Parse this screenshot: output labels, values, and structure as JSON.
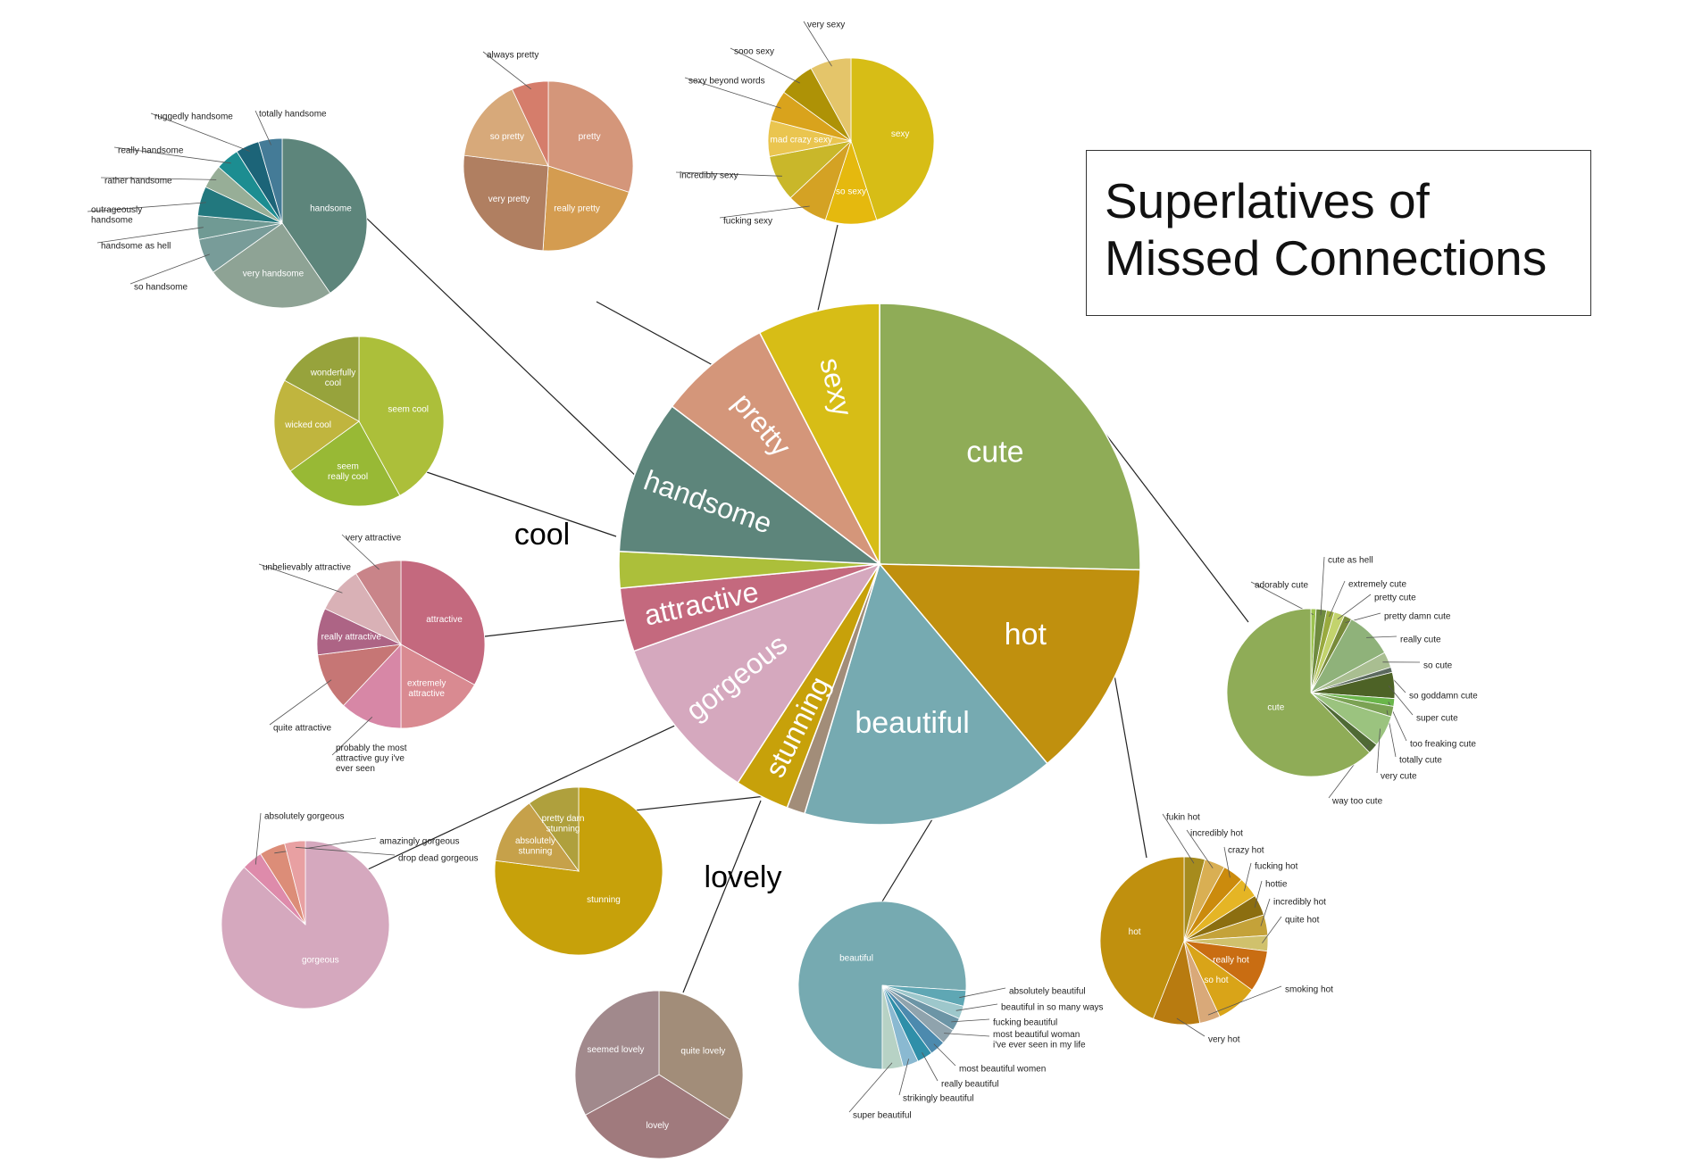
{
  "title": "Superlatives of\nMissed Connections",
  "chart_data": {
    "type": "pie",
    "main": {
      "name": "main",
      "slices": [
        {
          "label": "cute",
          "value": 90,
          "color": "#8FAC57",
          "fontSize": 34
        },
        {
          "label": "hot",
          "value": 48,
          "color": "#C0900E",
          "fontSize": 34
        },
        {
          "label": "beautiful",
          "value": 56,
          "color": "#76AAB1",
          "fontSize": 34
        },
        {
          "label": "lovely",
          "value": 4,
          "color": "#A28D79",
          "fontSize": 0
        },
        {
          "label": "stunning",
          "value": 12,
          "color": "#C7A10A",
          "fontSize": 32
        },
        {
          "label": "gorgeous",
          "value": 37,
          "color": "#D5A8BE",
          "fontSize": 32
        },
        {
          "label": "attractive",
          "value": 14,
          "color": "#C4697E",
          "fontSize": 32
        },
        {
          "label": "cool",
          "value": 8,
          "color": "#ACBF3A",
          "fontSize": 0
        },
        {
          "label": "handsome",
          "value": 34,
          "color": "#5D857B",
          "fontSize": 32
        },
        {
          "label": "pretty",
          "value": 25,
          "color": "#D4967A",
          "fontSize": 32
        },
        {
          "label": "sexy",
          "value": 27,
          "color": "#D7BD16",
          "fontSize": 32
        }
      ],
      "outer_labels": [
        {
          "text": "cool"
        },
        {
          "text": "lovely"
        }
      ]
    },
    "subs": [
      {
        "name": "handsome",
        "slices": [
          {
            "label": "handsome",
            "value": 36,
            "color": "#5D857B",
            "inside": true
          },
          {
            "label": "very handsome",
            "value": 22,
            "color": "#8EA395",
            "inside": true
          },
          {
            "label": "so handsome",
            "value": 6,
            "color": "#789C99",
            "inside": false
          },
          {
            "label": "handsome as hell",
            "value": 4,
            "color": "#709A94",
            "inside": false
          },
          {
            "label": "outrageously\nhandsome",
            "value": 5,
            "color": "#22787E",
            "inside": false
          },
          {
            "label": "rather handsome",
            "value": 4,
            "color": "#97AE97",
            "inside": false
          },
          {
            "label": "really handsome",
            "value": 4,
            "color": "#1C8D91",
            "inside": false
          },
          {
            "label": "ruggedly handsome",
            "value": 4,
            "color": "#1C6478",
            "inside": false
          },
          {
            "label": "totally handsome",
            "value": 4,
            "color": "#447B97",
            "inside": false
          }
        ]
      },
      {
        "name": "pretty",
        "slices": [
          {
            "label": "pretty",
            "value": 30,
            "color": "#D4967A",
            "inside": true
          },
          {
            "label": "really pretty",
            "value": 21,
            "color": "#D49C50",
            "inside": true
          },
          {
            "label": "very pretty",
            "value": 26,
            "color": "#B07F61",
            "inside": true
          },
          {
            "label": "so pretty",
            "value": 16,
            "color": "#D7A97A",
            "inside": true
          },
          {
            "label": "always pretty",
            "value": 7,
            "color": "#D57D6B",
            "inside": false
          }
        ]
      },
      {
        "name": "sexy",
        "slices": [
          {
            "label": "sexy",
            "value": 45,
            "color": "#D7BD16",
            "inside": true
          },
          {
            "label": "so sexy",
            "value": 10,
            "color": "#E5B90E",
            "inside": true
          },
          {
            "label": "fucking sexy",
            "value": 8,
            "color": "#D4A224",
            "inside": false
          },
          {
            "label": "incredibly sexy",
            "value": 9,
            "color": "#C9B72A",
            "inside": false
          },
          {
            "label": "mad crazy sexy",
            "value": 7,
            "color": "#EAC54F",
            "inside": true
          },
          {
            "label": "sexy beyond words",
            "value": 6,
            "color": "#D9A31C",
            "inside": false
          },
          {
            "label": "sooo sexy",
            "value": 7,
            "color": "#AE9206",
            "inside": false
          },
          {
            "label": "very sexy",
            "value": 8,
            "color": "#E4C56A",
            "inside": false
          }
        ]
      },
      {
        "name": "cool",
        "slices": [
          {
            "label": "seem cool",
            "value": 42,
            "color": "#ACBF3A",
            "inside": true
          },
          {
            "label": "seem\nreally cool",
            "value": 23,
            "color": "#98B935",
            "inside": true
          },
          {
            "label": "wicked cool",
            "value": 18,
            "color": "#C0B53E",
            "inside": true
          },
          {
            "label": "wonderfully\ncool",
            "value": 17,
            "color": "#97A33C",
            "inside": true
          }
        ]
      },
      {
        "name": "attractive",
        "slices": [
          {
            "label": "attractive",
            "value": 33,
            "color": "#C4697E",
            "inside": true
          },
          {
            "label": "extremely\nattractive",
            "value": 17,
            "color": "#D98A91",
            "inside": true
          },
          {
            "label": "probably the most\nattractive guy i've\never seen",
            "value": 12,
            "color": "#D787A6",
            "inside": false
          },
          {
            "label": "quite attractive",
            "value": 11,
            "color": "#C67675",
            "inside": false
          },
          {
            "label": "really attractive",
            "value": 9,
            "color": "#AD6485",
            "inside": true
          },
          {
            "label": "unbelievably attractive",
            "value": 9,
            "color": "#D9B1B6",
            "inside": false
          },
          {
            "label": "very attractive",
            "value": 9,
            "color": "#C98489",
            "inside": false
          }
        ]
      },
      {
        "name": "gorgeous",
        "slices": [
          {
            "label": "gorgeous",
            "value": 87,
            "color": "#D5A8BE",
            "inside": true
          },
          {
            "label": "absolutely gorgeous",
            "value": 4,
            "color": "#DE8BAB",
            "inside": false
          },
          {
            "label": "amazingly gorgeous",
            "value": 5,
            "color": "#DC8D78",
            "inside": false
          },
          {
            "label": "drop dead gorgeous",
            "value": 4,
            "color": "#E8A0A2",
            "inside": false
          }
        ]
      },
      {
        "name": "stunning",
        "slices": [
          {
            "label": "stunning",
            "value": 77,
            "color": "#C7A10A",
            "inside": true
          },
          {
            "label": "absolutely\nstunning",
            "value": 13,
            "color": "#C6A14A",
            "inside": true
          },
          {
            "label": "pretty darn\nstunning",
            "value": 10,
            "color": "#AFA03D",
            "inside": true
          }
        ]
      },
      {
        "name": "lovely",
        "slices": [
          {
            "label": "quite lovely",
            "value": 34,
            "color": "#A28D79",
            "inside": true
          },
          {
            "label": "lovely",
            "value": 33,
            "color": "#A07A7D",
            "inside": true
          },
          {
            "label": "seemed lovely",
            "value": 33,
            "color": "#A1898C",
            "inside": true
          }
        ]
      },
      {
        "name": "beautiful",
        "slices": [
          {
            "label": "beautiful",
            "value": 76,
            "color": "#76AAB1",
            "inside": true
          },
          {
            "label": "absolutely beautiful",
            "value": 3,
            "color": "#5FA7B4",
            "inside": false
          },
          {
            "label": "beautiful in so many ways",
            "value": 2.5,
            "color": "#9DC7CB",
            "inside": false
          },
          {
            "label": "fucking beautiful",
            "value": 2.5,
            "color": "#6C95A6",
            "inside": false
          },
          {
            "label": "most beautiful woman\ni've ever seen in my life",
            "value": 3,
            "color": "#8FA3AD",
            "inside": false
          },
          {
            "label": "most beautiful women",
            "value": 3,
            "color": "#4C8AAE",
            "inside": false
          },
          {
            "label": "really beautiful",
            "value": 3,
            "color": "#2F8FA9",
            "inside": false
          },
          {
            "label": "strikingly beautiful",
            "value": 3,
            "color": "#8AB9D1",
            "inside": false
          },
          {
            "label": "super beautiful",
            "value": 4,
            "color": "#B7D2C5",
            "inside": false
          }
        ]
      },
      {
        "name": "hot",
        "slices": [
          {
            "label": "fukin hot",
            "value": 4,
            "color": "#A68B1D",
            "inside": false
          },
          {
            "label": "incredibly hot",
            "value": 4,
            "color": "#D9AF53",
            "inside": false
          },
          {
            "label": "crazy hot",
            "value": 4,
            "color": "#CB8B0D",
            "inside": false
          },
          {
            "label": "fucking hot",
            "value": 4,
            "color": "#E5B525",
            "inside": false
          },
          {
            "label": "hottie",
            "value": 4,
            "color": "#8C6E10",
            "inside": false
          },
          {
            "label": "incredibly hot",
            "value": 4,
            "color": "#C4A239",
            "inside": false
          },
          {
            "label": "quite hot",
            "value": 3,
            "color": "#D0C16C",
            "inside": false
          },
          {
            "label": "really hot",
            "value": 8,
            "color": "#C96D12",
            "inside": true
          },
          {
            "label": "so hot",
            "value": 8,
            "color": "#D9A418",
            "inside": true
          },
          {
            "label": "smoking hot",
            "value": 4,
            "color": "#D9A979",
            "inside": false
          },
          {
            "label": "very hot",
            "value": 9,
            "color": "#B87B10",
            "inside": false
          },
          {
            "label": "hot",
            "value": 44,
            "color": "#C0900E",
            "inside": true
          }
        ]
      },
      {
        "name": "cute",
        "slices": [
          {
            "label": "adorably cute",
            "value": 1,
            "color": "#9CC350",
            "inside": false
          },
          {
            "label": "cute as hell",
            "value": 2,
            "color": "#6F8B3F",
            "inside": false
          },
          {
            "label": "extremely cute",
            "value": 1.5,
            "color": "#99AA3E",
            "inside": false
          },
          {
            "label": "pretty cute",
            "value": 2,
            "color": "#C3D36D",
            "inside": false
          },
          {
            "label": "pretty damn cute",
            "value": 1.5,
            "color": "#788A3A",
            "inside": false
          },
          {
            "label": "really cute",
            "value": 9,
            "color": "#8FB27A",
            "inside": false
          },
          {
            "label": "so cute",
            "value": 3,
            "color": "#A9BE91",
            "inside": false
          },
          {
            "label": "so goddamn cute",
            "value": 1,
            "color": "#5C6A5F",
            "inside": false
          },
          {
            "label": "super cute",
            "value": 5,
            "color": "#4D6226",
            "inside": false
          },
          {
            "label": "too freaking cute",
            "value": 1.5,
            "color": "#6AB54A",
            "inside": false
          },
          {
            "label": "totally cute",
            "value": 2,
            "color": "#7BA254",
            "inside": false
          },
          {
            "label": "very cute",
            "value": 6,
            "color": "#9BC37F",
            "inside": false
          },
          {
            "label": "way too cute",
            "value": 2,
            "color": "#4F6A35",
            "inside": false
          },
          {
            "label": "cute",
            "value": 62,
            "color": "#8FAC57",
            "inside": true
          }
        ]
      }
    ]
  }
}
